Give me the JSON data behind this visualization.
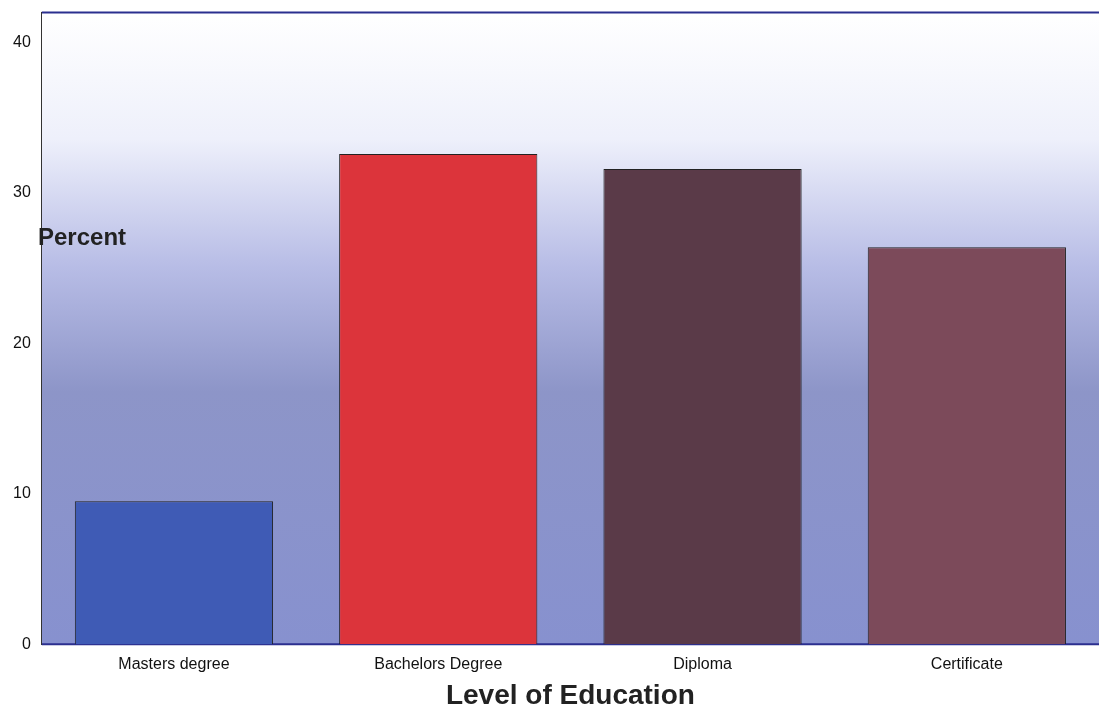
{
  "chart_data": {
    "type": "bar",
    "xlabel": "Level of Education",
    "ylabel": "Percent",
    "categories": [
      "Masters degree",
      "Bachelors Degree",
      "Diploma",
      "Certificate"
    ],
    "values": [
      9.5,
      32.6,
      31.6,
      26.4
    ],
    "colors": [
      "#3f5bb5",
      "#dc343b",
      "#5a3a48",
      "#7c4a5a"
    ],
    "ylim": [
      0,
      42
    ],
    "yticks": [
      0,
      10,
      20,
      30,
      40
    ],
    "grid": false,
    "legend": false
  }
}
